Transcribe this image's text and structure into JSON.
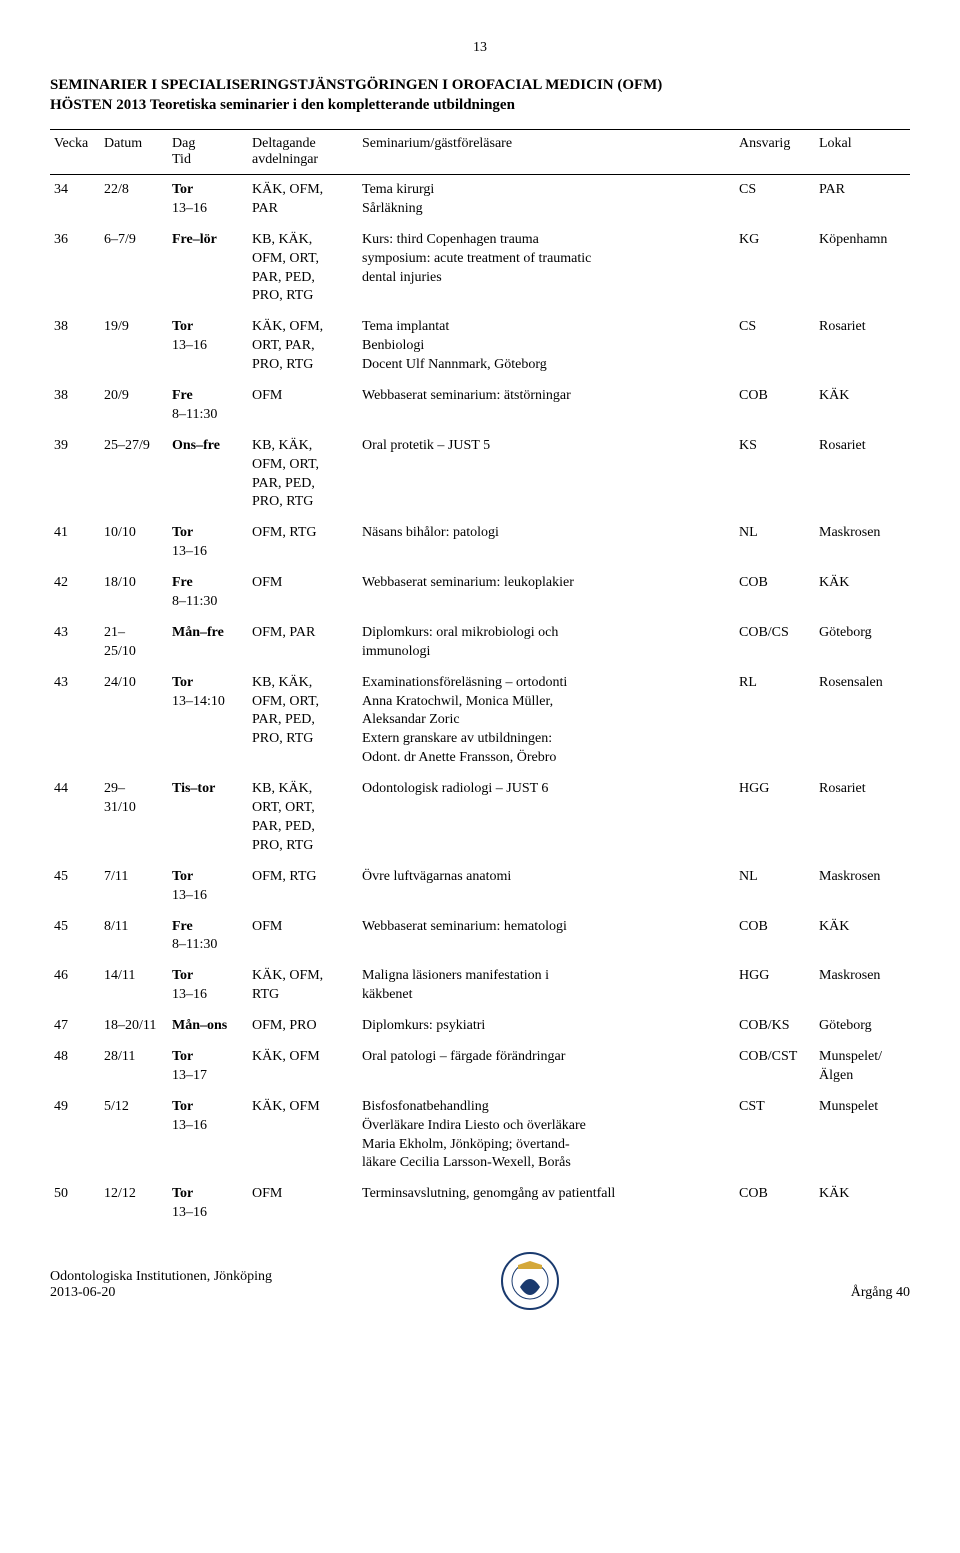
{
  "page_number": "13",
  "title_line1": "SEMINARIER I SPECIALISERINGSTJÄNSTGÖRINGEN I OROFACIAL MEDICIN (OFM)",
  "title_line2": "HÖSTEN 2013 Teoretiska seminarier i den kompletterande utbildningen",
  "headers": {
    "vecka": "Vecka",
    "datum": "Datum",
    "dag": "Dag\nTid",
    "delt": "Deltagande\navdelningar",
    "sem": "Seminarium/gästföreläsare",
    "ansv": "Ansvarig",
    "lokal": "Lokal"
  },
  "rows": [
    {
      "vecka": "34",
      "datum": "22/8",
      "dag_bold": "Tor",
      "dag_rest": "13–16",
      "delt": "KÄK, OFM,\nPAR",
      "sem": "Tema kirurgi\nSårläkning",
      "ansv": "CS",
      "lokal": "PAR"
    },
    {
      "vecka": "36",
      "datum": "6–7/9",
      "dag_bold": "Fre–lör",
      "dag_rest": "",
      "delt": "KB, KÄK,\nOFM, ORT,\nPAR, PED,\nPRO, RTG",
      "sem": "Kurs: third Copenhagen trauma\nsymposium: acute treatment of traumatic\ndental injuries",
      "ansv": "KG",
      "lokal": "Köpenhamn"
    },
    {
      "vecka": "38",
      "datum": "19/9",
      "dag_bold": "Tor",
      "dag_rest": "13–16",
      "delt": "KÄK, OFM,\nORT, PAR,\nPRO, RTG",
      "sem": "Tema implantat\nBenbiologi\nDocent Ulf Nannmark, Göteborg",
      "ansv": "CS",
      "lokal": "Rosariet"
    },
    {
      "vecka": "38",
      "datum": "20/9",
      "dag_bold": "Fre",
      "dag_rest": "8–11:30",
      "delt": "OFM",
      "sem": "Webbaserat seminarium: ätstörningar",
      "ansv": "COB",
      "lokal": "KÄK"
    },
    {
      "vecka": "39",
      "datum": "25–27/9",
      "dag_bold": "Ons–fre",
      "dag_rest": "",
      "delt": "KB, KÄK,\nOFM, ORT,\nPAR, PED,\nPRO, RTG",
      "sem": "Oral protetik – JUST 5",
      "ansv": "KS",
      "lokal": "Rosariet"
    },
    {
      "vecka": "41",
      "datum": "10/10",
      "dag_bold": "Tor",
      "dag_rest": "13–16",
      "delt": "OFM, RTG",
      "sem": "Näsans bihålor: patologi",
      "ansv": "NL",
      "lokal": "Maskrosen"
    },
    {
      "vecka": "42",
      "datum": "18/10",
      "dag_bold": "Fre",
      "dag_rest": "8–11:30",
      "delt": "OFM",
      "sem": "Webbaserat seminarium: leukoplakier",
      "ansv": "COB",
      "lokal": "KÄK"
    },
    {
      "vecka": "43",
      "datum": "21–\n25/10",
      "dag_bold": "Mån–fre",
      "dag_rest": "",
      "delt": "OFM, PAR",
      "sem": "Diplomkurs: oral mikrobiologi och\nimmunologi",
      "ansv": "COB/CS",
      "lokal": "Göteborg"
    },
    {
      "vecka": "43",
      "datum": "24/10",
      "dag_bold": "Tor",
      "dag_rest": "13–14:10",
      "delt": "KB, KÄK,\nOFM, ORT,\nPAR, PED,\nPRO, RTG",
      "sem": "Examinationsföreläsning – ortodonti\nAnna Kratochwil, Monica Müller,\nAleksandar Zoric\nExtern granskare av utbildningen:\nOdont. dr Anette Fransson, Örebro",
      "ansv": "RL",
      "lokal": "Rosensalen"
    },
    {
      "vecka": "44",
      "datum": "29–\n31/10",
      "dag_bold": "Tis–tor",
      "dag_rest": "",
      "delt": "KB, KÄK,\nORT, ORT,\nPAR, PED,\nPRO, RTG",
      "sem": "Odontologisk radiologi – JUST 6",
      "ansv": "HGG",
      "lokal": "Rosariet"
    },
    {
      "vecka": "45",
      "datum": "7/11",
      "dag_bold": "Tor",
      "dag_rest": "13–16",
      "delt": "OFM, RTG",
      "sem": "Övre luftvägarnas anatomi",
      "ansv": "NL",
      "lokal": "Maskrosen"
    },
    {
      "vecka": "45",
      "datum": "8/11",
      "dag_bold": "Fre",
      "dag_rest": "8–11:30",
      "delt": "OFM",
      "sem": "Webbaserat seminarium: hematologi",
      "ansv": "COB",
      "lokal": "KÄK"
    },
    {
      "vecka": "46",
      "datum": "14/11",
      "dag_bold": "Tor",
      "dag_rest": "13–16",
      "delt": "KÄK, OFM,\nRTG",
      "sem": "Maligna läsioners manifestation i\nkäkbenet",
      "ansv": "HGG",
      "lokal": "Maskrosen"
    },
    {
      "vecka": "47",
      "datum": "18–20/11",
      "dag_bold": "Mån–ons",
      "dag_rest": "",
      "delt": "OFM, PRO",
      "sem": "Diplomkurs: psykiatri",
      "ansv": "COB/KS",
      "lokal": "Göteborg"
    },
    {
      "vecka": "48",
      "datum": "28/11",
      "dag_bold": "Tor",
      "dag_rest": "13–17",
      "delt": "KÄK, OFM",
      "sem": "Oral patologi – färgade förändringar",
      "ansv": "COB/CST",
      "lokal": "Munspelet/\nÄlgen"
    },
    {
      "vecka": "49",
      "datum": "5/12",
      "dag_bold": "Tor",
      "dag_rest": "13–16",
      "delt": "KÄK, OFM",
      "sem": "Bisfosfonatbehandling\nÖverläkare Indira Liesto och överläkare\nMaria Ekholm, Jönköping; övertand-\nläkare Cecilia Larsson-Wexell, Borås",
      "ansv": "CST",
      "lokal": "Munspelet"
    },
    {
      "vecka": "50",
      "datum": "12/12",
      "dag_bold": "Tor",
      "dag_rest": "13–16",
      "delt": "OFM",
      "sem": "Terminsavslutning, genomgång av patientfall",
      "ansv": "COB",
      "lokal": "KÄK"
    }
  ],
  "footer": {
    "line1": "Odontologiska Institutionen, Jönköping",
    "line2": "2013-06-20",
    "right": "Årgång 40"
  }
}
